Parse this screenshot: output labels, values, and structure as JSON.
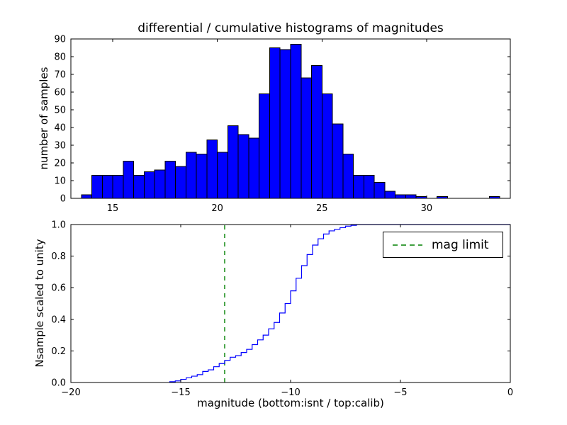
{
  "chart_data": [
    {
      "type": "bar",
      "title": "differential / cumulative histograms of magnitudes",
      "ylabel": "number of samples",
      "bin_start": 13.5,
      "bin_width": 0.5,
      "values": [
        2,
        13,
        13,
        13,
        21,
        13,
        15,
        16,
        21,
        18,
        26,
        25,
        33,
        26,
        41,
        36,
        34,
        59,
        85,
        84,
        87,
        68,
        75,
        59,
        42,
        25,
        13,
        13,
        9,
        4,
        2,
        2,
        1,
        0,
        1,
        0,
        0,
        0,
        0,
        1
      ],
      "xlim": [
        13,
        34
      ],
      "ylim": [
        0,
        90
      ],
      "xticks": [
        15,
        20,
        25,
        30
      ],
      "xticklabels": [
        "15",
        "20",
        "25",
        "30"
      ],
      "yticks": [
        0,
        10,
        20,
        30,
        40,
        50,
        60,
        70,
        80,
        90
      ],
      "yticklabels": [
        "0",
        "10",
        "20",
        "30",
        "40",
        "50",
        "60",
        "70",
        "80",
        "90"
      ],
      "bar_color": "#0000ff",
      "bar_edge_color": "#000000",
      "grid": false
    },
    {
      "type": "line",
      "ylabel": "Nsample scaled to unity",
      "xlabel": "magnitude (bottom:isnt / top:calib)",
      "xlim": [
        -20,
        0
      ],
      "ylim": [
        0,
        1
      ],
      "xticks": [
        -20,
        -15,
        -10,
        -5,
        0
      ],
      "xticklabels": [
        "−20",
        "−15",
        "−10",
        "−5",
        "0"
      ],
      "yticks": [
        0,
        0.2,
        0.4,
        0.6,
        0.8,
        1.0
      ],
      "yticklabels": [
        "0.0",
        "0.2",
        "0.4",
        "0.6",
        "0.8",
        "1.0"
      ],
      "line_color": "#0000ff",
      "steps": {
        "x_start": -15.5,
        "x_step": 0.25,
        "y": [
          0.005,
          0.01,
          0.02,
          0.03,
          0.04,
          0.05,
          0.07,
          0.08,
          0.1,
          0.12,
          0.14,
          0.16,
          0.17,
          0.19,
          0.21,
          0.24,
          0.27,
          0.3,
          0.34,
          0.38,
          0.44,
          0.5,
          0.58,
          0.66,
          0.74,
          0.81,
          0.87,
          0.91,
          0.94,
          0.96,
          0.97,
          0.98,
          0.99,
          0.995,
          1.0
        ]
      },
      "mag_limit": {
        "x": -13,
        "color": "#008000",
        "style": "dashed"
      },
      "legend": {
        "position": "upper right",
        "entries": [
          {
            "label": "mag limit",
            "color": "#008000",
            "style": "dashed"
          }
        ]
      },
      "grid": false
    }
  ]
}
